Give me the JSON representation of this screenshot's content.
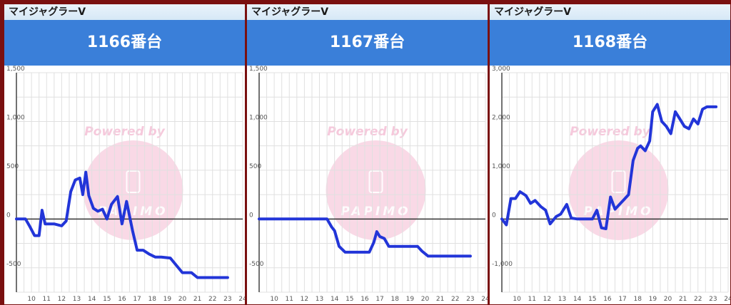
{
  "panels": [
    {
      "machine": "マイジャグラーV",
      "unit_label": "1166番台",
      "watermark_top": "Powered by",
      "watermark_brand": "PAPIMO"
    },
    {
      "machine": "マイジャグラーV",
      "unit_label": "1167番台",
      "watermark_top": "Powered by",
      "watermark_brand": "PAPIMO"
    },
    {
      "machine": "マイジャグラーV",
      "unit_label": "1168番台",
      "watermark_top": "Powered by",
      "watermark_brand": "PAPIMO"
    }
  ],
  "colors": {
    "frame": "#7a1010",
    "header": "#3a7fd9",
    "line": "#2235d8",
    "watermark": "#f6c9dc",
    "grid": "#e0e0e0"
  },
  "chart_data": [
    {
      "type": "line",
      "title": "1166番台",
      "x_ticks": [
        "10",
        "11",
        "12",
        "13",
        "14",
        "15",
        "16",
        "17",
        "18",
        "19",
        "20",
        "21",
        "22",
        "23",
        "24"
      ],
      "xlim": [
        9,
        24
      ],
      "ylim": [
        -750,
        1500
      ],
      "y_ticks": [
        1500,
        1000,
        500,
        0,
        -500
      ],
      "y_tick_labels": [
        "1,500",
        "1,000",
        "500",
        "0",
        "-500"
      ],
      "series": [
        {
          "x": [
            9.0,
            9.6,
            9.9,
            10.2,
            10.5,
            10.7,
            10.9,
            11.1,
            11.5,
            12.0,
            12.3,
            12.6,
            12.9,
            13.2,
            13.4,
            13.6,
            13.8,
            14.1,
            14.4,
            14.7,
            15.0,
            15.3,
            15.7,
            16.0,
            16.3,
            16.7,
            17.0,
            17.4,
            17.8,
            18.2,
            18.6,
            19.2,
            20.0,
            20.6,
            21.0,
            22.0,
            23.0
          ],
          "y": [
            0,
            0,
            -80,
            -170,
            -170,
            90,
            -50,
            -50,
            -50,
            -70,
            -20,
            280,
            400,
            420,
            250,
            480,
            240,
            110,
            80,
            100,
            0,
            150,
            230,
            -50,
            180,
            -120,
            -320,
            -320,
            -360,
            -390,
            -390,
            -400,
            -550,
            -550,
            -600,
            -600,
            -600
          ]
        }
      ]
    },
    {
      "type": "line",
      "title": "1167番台",
      "x_ticks": [
        "10",
        "11",
        "12",
        "13",
        "14",
        "15",
        "16",
        "17",
        "18",
        "19",
        "20",
        "21",
        "22",
        "23",
        "24"
      ],
      "xlim": [
        9,
        24
      ],
      "ylim": [
        -750,
        1500
      ],
      "y_ticks": [
        1500,
        1000,
        500,
        0,
        -500
      ],
      "y_tick_labels": [
        "1,500",
        "1,000",
        "500",
        "0",
        "-500"
      ],
      "series": [
        {
          "x": [
            9.0,
            13.5,
            13.8,
            14.0,
            14.3,
            14.7,
            15.5,
            16.3,
            16.6,
            16.8,
            17.0,
            17.3,
            17.6,
            18.0,
            19.5,
            19.8,
            20.2,
            21.0,
            22.0,
            23.0
          ],
          "y": [
            0,
            0,
            -80,
            -120,
            -280,
            -340,
            -340,
            -340,
            -240,
            -130,
            -180,
            -200,
            -280,
            -280,
            -280,
            -330,
            -380,
            -380,
            -380,
            -380
          ]
        }
      ]
    },
    {
      "type": "line",
      "title": "1168番台",
      "x_ticks": [
        "10",
        "11",
        "12",
        "13",
        "14",
        "15",
        "16",
        "17",
        "18",
        "19",
        "20",
        "21",
        "22",
        "23",
        "24"
      ],
      "xlim": [
        9,
        24
      ],
      "ylim": [
        -1500,
        3000
      ],
      "y_ticks": [
        3000,
        2000,
        1000,
        0,
        -1000
      ],
      "y_tick_labels": [
        "3,000",
        "2,000",
        "1,000",
        "0",
        "-1,000"
      ],
      "series": [
        {
          "x": [
            9.0,
            9.3,
            9.6,
            9.9,
            10.2,
            10.6,
            10.9,
            11.2,
            11.6,
            11.9,
            12.2,
            12.6,
            12.9,
            13.3,
            13.6,
            14.0,
            14.4,
            14.8,
            15.0,
            15.3,
            15.6,
            15.9,
            16.2,
            16.5,
            16.8,
            17.1,
            17.4,
            17.7,
            18.0,
            18.2,
            18.5,
            18.8,
            19.0,
            19.3,
            19.6,
            19.9,
            20.2,
            20.5,
            20.8,
            21.1,
            21.4,
            21.7,
            22.0,
            22.3,
            22.6,
            22.9,
            23.2
          ],
          "y": [
            0,
            -120,
            420,
            420,
            560,
            480,
            320,
            380,
            250,
            180,
            -100,
            50,
            100,
            300,
            20,
            0,
            0,
            0,
            0,
            180,
            -180,
            -200,
            450,
            200,
            300,
            400,
            500,
            1200,
            1450,
            1500,
            1400,
            1600,
            2200,
            2350,
            2000,
            1900,
            1750,
            2200,
            2050,
            1900,
            1850,
            2050,
            1950,
            2250,
            2300,
            2300,
            2300
          ]
        }
      ]
    }
  ]
}
